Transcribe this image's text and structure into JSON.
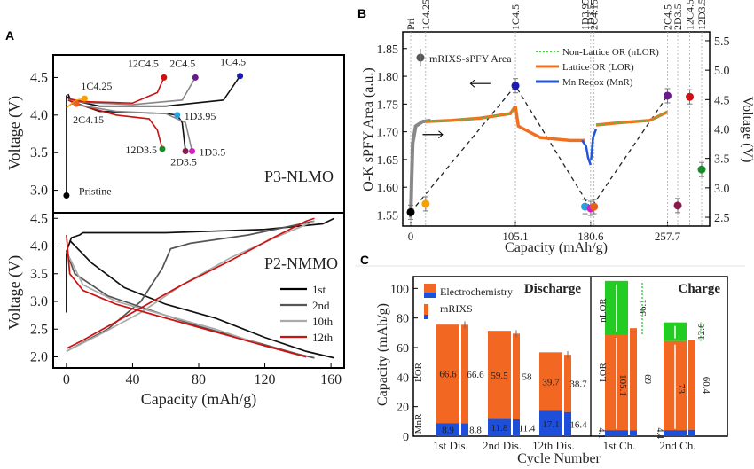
{
  "chart_data": [
    {
      "panel": "A",
      "type": "line",
      "subplots": [
        {
          "name": "P3-NLMO",
          "ylabel": "Voltage (V)",
          "ylim": [
            2.7,
            4.8
          ],
          "yticks": [
            "3.0",
            "3.5",
            "4.0",
            "4.5"
          ],
          "series_label": "P3-NLMO",
          "points": [
            {
              "label": "Pristine",
              "x": 0,
              "y": 2.93,
              "color": "#000000"
            },
            {
              "label": "1C4.25",
              "x": 11,
              "y": 4.22,
              "color": "#f5a000"
            },
            {
              "label": "2C4.15",
              "x": 6,
              "y": 4.15,
              "color": "#e8601c"
            },
            {
              "label": "12C4.5",
              "x": 59,
              "y": 4.5,
              "color": "#d01010"
            },
            {
              "label": "2C4.5",
              "x": 78,
              "y": 4.5,
              "color": "#6a1a8a"
            },
            {
              "label": "1C4.5",
              "x": 105,
              "y": 4.52,
              "color": "#1a1ab0"
            },
            {
              "label": "1D3.95",
              "x": 67,
              "y": 4.0,
              "color": "#2aa0e0"
            },
            {
              "label": "12D3.5",
              "x": 58,
              "y": 3.55,
              "color": "#1a8a2a"
            },
            {
              "label": "2D3.5",
              "x": 72,
              "y": 3.52,
              "color": "#8a1a4a"
            },
            {
              "label": "1D3.5",
              "x": 76,
              "y": 3.52,
              "color": "#d020c0"
            }
          ]
        },
        {
          "name": "P2-NMMO",
          "ylabel": "Voltage (V)",
          "xlabel": "Capacity (mAh/g)",
          "ylim": [
            1.8,
            4.6
          ],
          "xlim": [
            -8,
            168
          ],
          "yticks": [
            "2.0",
            "2.5",
            "3.0",
            "3.5",
            "4.0",
            "4.5"
          ],
          "xticks": [
            "0",
            "40",
            "80",
            "120",
            "160"
          ],
          "series_label": "P2-NMMO",
          "legend": [
            {
              "name": "1st",
              "color": "#000000"
            },
            {
              "name": "2nd",
              "color": "#555555"
            },
            {
              "name": "10th",
              "color": "#aaaaaa"
            },
            {
              "name": "12th",
              "color": "#cc1111"
            }
          ]
        }
      ]
    },
    {
      "panel": "B",
      "type": "line",
      "ylabel": "O-K sPFY Area (a.u.)",
      "ylabel_right": "Voltage (V)",
      "xlabel": "Capacity (mAh/g)",
      "ylim": [
        1.53,
        1.88
      ],
      "yticks": [
        "1.55",
        "1.60",
        "1.65",
        "1.70",
        "1.75",
        "1.80",
        "1.85"
      ],
      "yticks_right": [
        "2.5",
        "3.0",
        "3.5",
        "4.0",
        "4.5",
        "5.0",
        "5.5"
      ],
      "xticks": [
        "0",
        "105.1",
        "180.6",
        "257.7"
      ],
      "top_labels": [
        {
          "text": "Pri",
          "color": "#000000"
        },
        {
          "text": "1C4.25",
          "color": "#f5a000"
        },
        {
          "text": "1C4.5",
          "color": "#1a1ab0"
        },
        {
          "text": "1D3.95",
          "color": "#2aa0e0"
        },
        {
          "text": "1D3.5",
          "color": "#d020c0"
        },
        {
          "text": "2C4.15",
          "color": "#e8601c"
        },
        {
          "text": "2C4.5",
          "color": "#6a1a8a"
        },
        {
          "text": "2D3.5",
          "color": "#8a1a4a"
        },
        {
          "text": "12C4.5",
          "color": "#d01010"
        },
        {
          "text": "12D3.5",
          "color": "#1a8a2a"
        }
      ],
      "legend": [
        {
          "name": "mRIXS-sPFY Area",
          "color": "#555555"
        },
        {
          "name": "Non-Lattice OR (nLOR)",
          "color": "#44cc44"
        },
        {
          "name": "Lattice OR (LOR)",
          "color": "#f07020"
        },
        {
          "name": "Mn Redox (MnR)",
          "color": "#2255dd"
        }
      ],
      "points": [
        {
          "label": "Pri",
          "x": 0,
          "y": 1.555,
          "color": "#000000"
        },
        {
          "label": "1C4.25",
          "x": 15,
          "y": 1.57,
          "color": "#f5a000"
        },
        {
          "label": "1C4.5",
          "x": 105.1,
          "y": 1.783,
          "color": "#1a1ab0"
        },
        {
          "label": "1D3.95",
          "x": 175,
          "y": 1.565,
          "color": "#2aa0e0"
        },
        {
          "label": "1D3.5",
          "x": 180.6,
          "y": 1.562,
          "color": "#d020c0"
        },
        {
          "label": "2C4.15",
          "x": 184,
          "y": 1.565,
          "color": "#e8601c"
        },
        {
          "label": "2C4.5",
          "x": 257.7,
          "y": 1.765,
          "color": "#6a1a8a"
        },
        {
          "label": "2D3.5",
          "x": 268,
          "y": 1.567,
          "color": "#8a1a4a"
        },
        {
          "label": "12C4.5",
          "x": 280,
          "y": 1.763,
          "color": "#d01010"
        },
        {
          "label": "12D3.5",
          "x": 292,
          "y": 1.632,
          "color": "#1a8a2a"
        }
      ]
    },
    {
      "panel": "C",
      "type": "bar",
      "ylabel": "Capacity (mAh/g)",
      "xlabel": "Cycle Number",
      "ylim": [
        0,
        108
      ],
      "yticks": [
        "0",
        "20",
        "40",
        "60",
        "80",
        "100"
      ],
      "categories": [
        "1st Dis.",
        "2nd Dis.",
        "12th Dis.",
        "1st Ch.",
        "2nd Ch."
      ],
      "section_labels": [
        "Discharge",
        "Charge"
      ],
      "legend": [
        {
          "name": "Electrochemistry"
        },
        {
          "name": "mRIXS"
        }
      ],
      "side_labels": {
        "lor": "LOR",
        "mnr": "MnR",
        "nlor": "nLOR"
      },
      "discharge": [
        {
          "category": "1st Dis.",
          "echem_lor": 66.6,
          "echem_mnr": 8.9,
          "rixs_lor": 66.6,
          "rixs_mnr": 8.8
        },
        {
          "category": "2nd Dis.",
          "echem_lor": 59.5,
          "echem_mnr": 11.8,
          "rixs_lor": 58,
          "rixs_mnr": 11.4
        },
        {
          "category": "12th Dis.",
          "echem_lor": 39.7,
          "echem_mnr": 17.1,
          "rixs_lor": 38.7,
          "rixs_mnr": 16.4
        }
      ],
      "charge": [
        {
          "category": "1st Ch.",
          "echem_lor": 105.1,
          "echem_nlor": 36.1,
          "rixs_lor": 69,
          "rixs_mnr": 4.1,
          "echem_total": 105.1
        },
        {
          "category": "2nd Ch.",
          "echem_lor": 73,
          "echem_nlor": 12.6,
          "rixs_lor": 60.4,
          "rixs_mnr": 4.4,
          "echem_total": 77
        }
      ],
      "colors": {
        "lor": "#f26722",
        "mnr": "#1e4fd8",
        "nlor": "#22cc22"
      }
    }
  ]
}
